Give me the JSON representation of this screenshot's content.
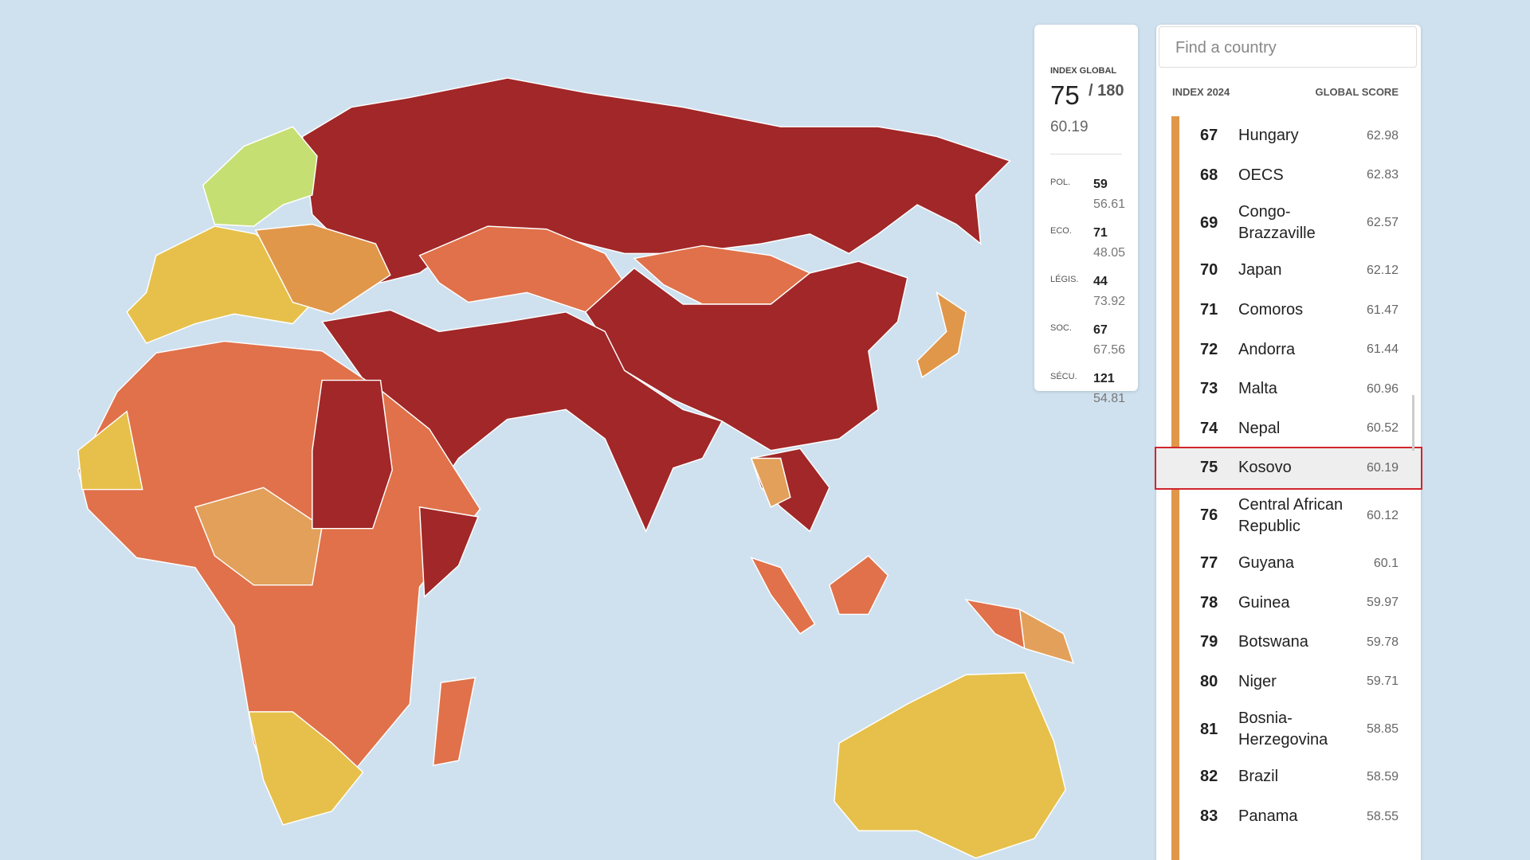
{
  "index_card": {
    "label": "INDEX GLOBAL",
    "rank": "75",
    "total": "/ 180",
    "score": "60.19",
    "indicators": [
      {
        "label": "POL.",
        "rank": "59",
        "score": "56.61"
      },
      {
        "label": "ECO.",
        "rank": "71",
        "score": "48.05"
      },
      {
        "label": "LÉGIS.",
        "rank": "44",
        "score": "73.92"
      },
      {
        "label": "SOC.",
        "rank": "67",
        "score": "67.56"
      },
      {
        "label": "SÉCU.",
        "rank": "121",
        "score": "54.81"
      }
    ]
  },
  "search": {
    "placeholder": "Find a country"
  },
  "list": {
    "header": {
      "rank": "INDEX 2024",
      "score": "GLOBAL SCORE"
    },
    "rows": [
      {
        "rank": "67",
        "country": "Hungary",
        "score": "62.98"
      },
      {
        "rank": "68",
        "country": "OECS",
        "score": "62.83"
      },
      {
        "rank": "69",
        "country": "Congo-Brazzaville",
        "score": "62.57"
      },
      {
        "rank": "70",
        "country": "Japan",
        "score": "62.12"
      },
      {
        "rank": "71",
        "country": "Comoros",
        "score": "61.47"
      },
      {
        "rank": "72",
        "country": "Andorra",
        "score": "61.44"
      },
      {
        "rank": "73",
        "country": "Malta",
        "score": "60.96"
      },
      {
        "rank": "74",
        "country": "Nepal",
        "score": "60.52"
      },
      {
        "rank": "75",
        "country": "Kosovo",
        "score": "60.19"
      },
      {
        "rank": "76",
        "country": "Central African Republic",
        "score": "60.12"
      },
      {
        "rank": "77",
        "country": "Guyana",
        "score": "60.1"
      },
      {
        "rank": "78",
        "country": "Guinea",
        "score": "59.97"
      },
      {
        "rank": "79",
        "country": "Botswana",
        "score": "59.78"
      },
      {
        "rank": "80",
        "country": "Niger",
        "score": "59.71"
      },
      {
        "rank": "81",
        "country": "Bosnia-Herzegovina",
        "score": "58.85"
      },
      {
        "rank": "82",
        "country": "Brazil",
        "score": "58.59"
      },
      {
        "rank": "83",
        "country": "Panama",
        "score": "58.55"
      }
    ]
  }
}
